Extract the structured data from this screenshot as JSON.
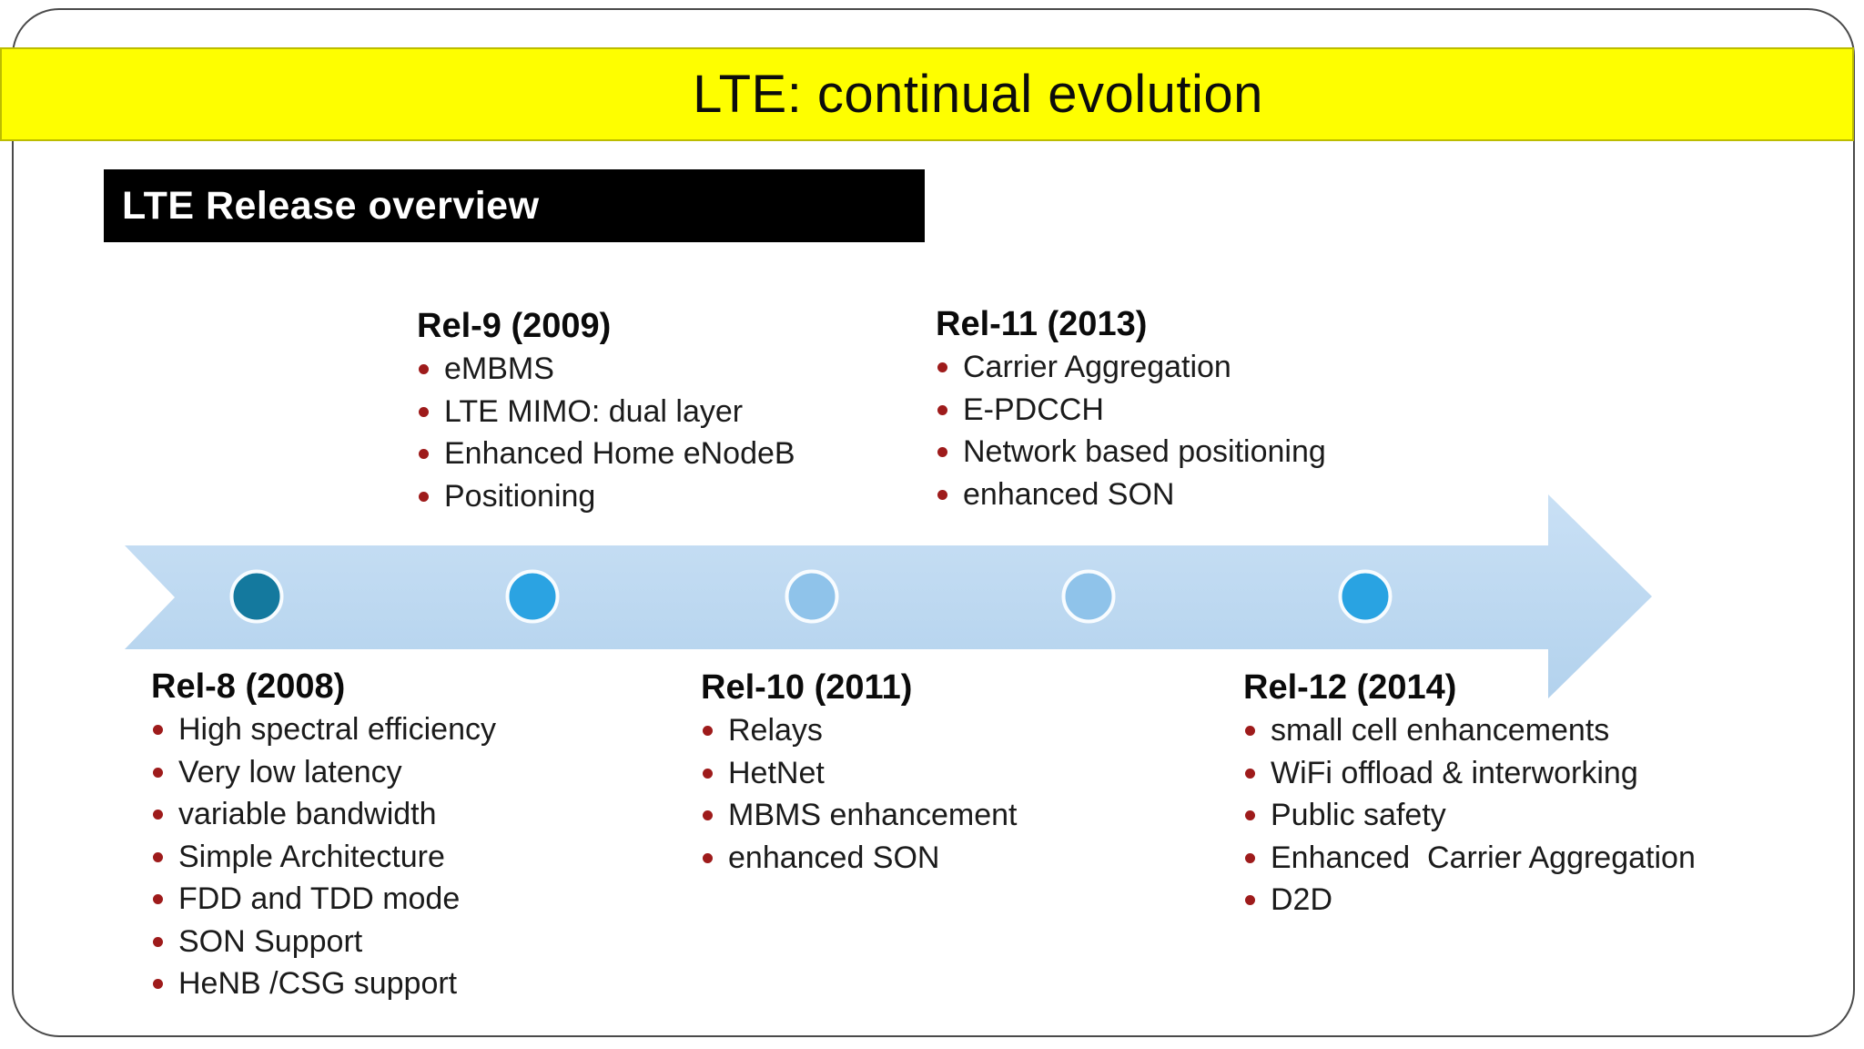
{
  "slide": {
    "title": "LTE: continual evolution",
    "section_header": "LTE Release overview",
    "releases": [
      {
        "id": "rel-9",
        "title": "Rel-9 (2009)",
        "position": "above-timeline",
        "items": [
          "eMBMS",
          "LTE MIMO: dual layer",
          "Enhanced Home eNodeB",
          "Positioning"
        ]
      },
      {
        "id": "rel-11",
        "title": "Rel-11 (2013)",
        "position": "above-timeline",
        "items": [
          "Carrier Aggregation",
          "E-PDCCH",
          "Network based positioning",
          "enhanced SON"
        ]
      },
      {
        "id": "rel-8",
        "title": "Rel-8 (2008)",
        "position": "below-timeline",
        "items": [
          "High spectral efficiency",
          "Very low latency",
          "variable bandwidth",
          "Simple Architecture",
          "FDD and TDD mode",
          "SON Support",
          "HeNB /CSG support"
        ]
      },
      {
        "id": "rel-10",
        "title": "Rel-10 (2011)",
        "position": "below-timeline",
        "items": [
          "Relays",
          "HetNet",
          "MBMS enhancement",
          "enhanced SON"
        ]
      },
      {
        "id": "rel-12",
        "title": "Rel-12 (2014)",
        "position": "below-timeline",
        "items": [
          "small cell enhancements",
          "WiFi offload & interworking",
          "Public safety",
          "Enhanced  Carrier Aggregation",
          "D2D"
        ]
      }
    ],
    "timeline": {
      "direction": "left-to-right",
      "dots": [
        {
          "release": "Rel-8",
          "color": "#14799E"
        },
        {
          "release": "Rel-9",
          "color": "#2BA3E2"
        },
        {
          "release": "Rel-10",
          "color": "#8FC3EA"
        },
        {
          "release": "Rel-11",
          "color": "#8FC3EA"
        },
        {
          "release": "Rel-12",
          "color": "#29A3E2"
        }
      ]
    }
  },
  "colors": {
    "banner_background": "#FEFE00",
    "banner_border": "#BCBC00",
    "header_background": "#000000",
    "header_text": "#FFFFFF",
    "bullet": "#9E1B1B",
    "body_text": "#1B1B1B",
    "band_top": "#C9E0F5",
    "band_bottom": "#B3D2ED",
    "dot_ring": "#F8FCFF",
    "frame_border": "#4A4A4A"
  }
}
